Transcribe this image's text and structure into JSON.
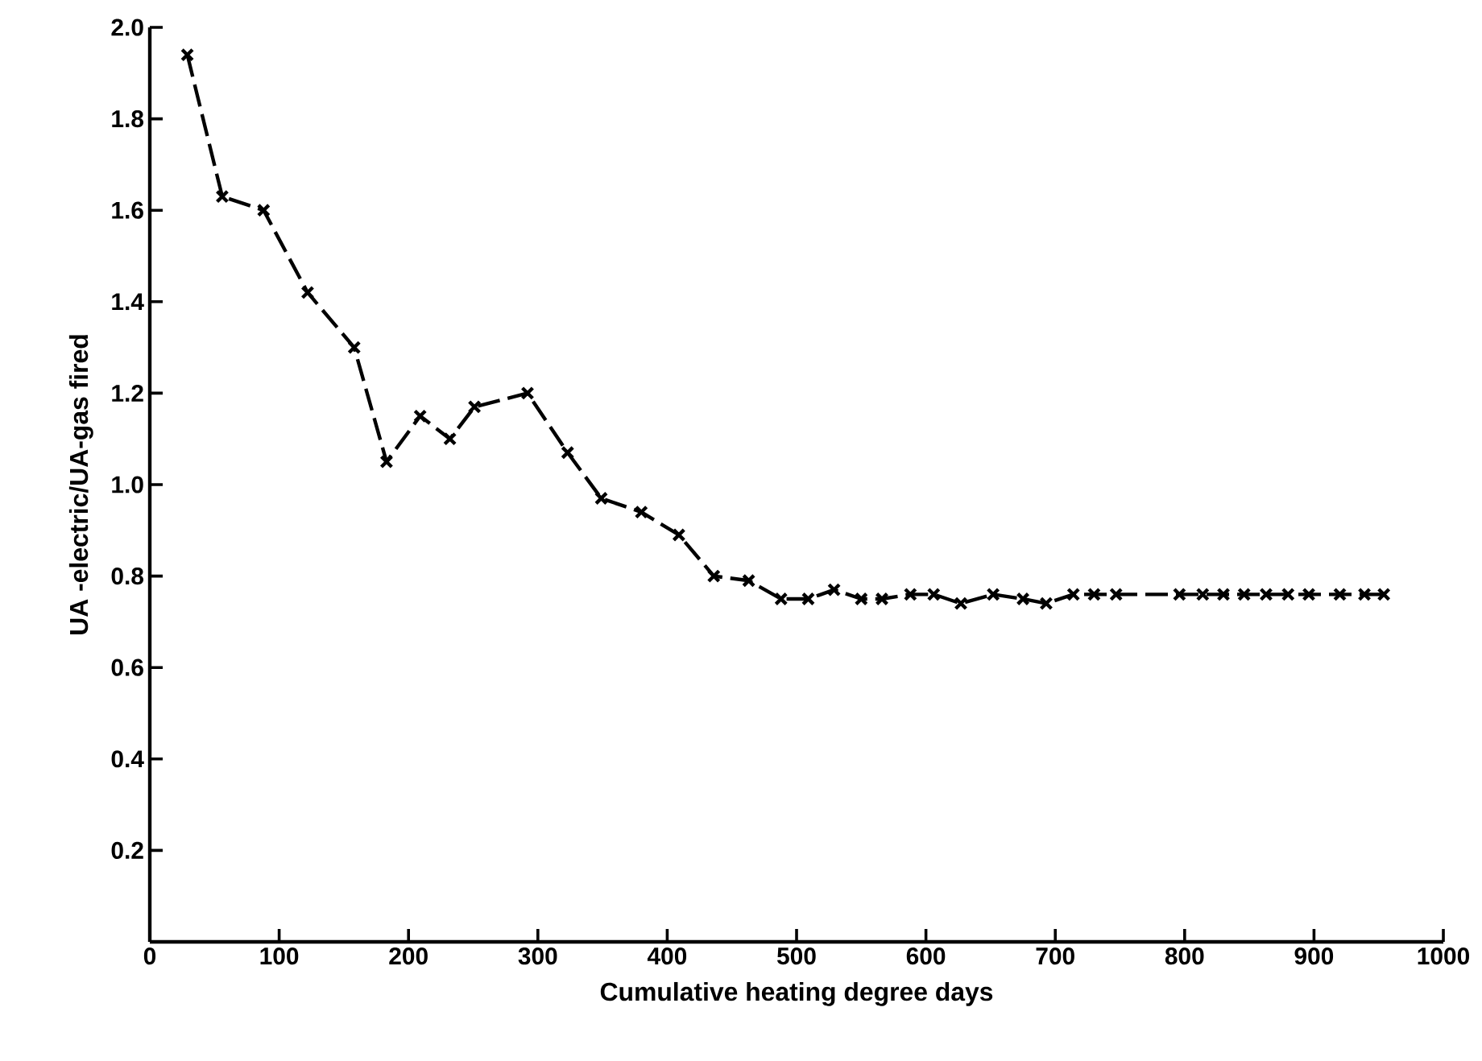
{
  "chart_data": {
    "type": "line",
    "xlabel": "Cumulative heating degree days",
    "ylabel": "UA -electric/UA-gas fired",
    "x": [
      29,
      56,
      88,
      122,
      158,
      183,
      209,
      232,
      251,
      292,
      323,
      349,
      380,
      409,
      436,
      463,
      488,
      509,
      529,
      550,
      566,
      588,
      606,
      627,
      652,
      675,
      693,
      714,
      730,
      747,
      796,
      814,
      830,
      846,
      863,
      880,
      896,
      920,
      939,
      954
    ],
    "series": [
      {
        "color": "#000000",
        "values": [
          1.94,
          1.63,
          1.6,
          1.42,
          1.3,
          1.05,
          1.15,
          1.1,
          1.17,
          1.2,
          1.07,
          0.97,
          0.94,
          0.89,
          0.8,
          0.79,
          0.75,
          0.75,
          0.77,
          0.75,
          0.75,
          0.76,
          0.76,
          0.74,
          0.76,
          0.75,
          0.74,
          0.76,
          0.76,
          0.76,
          0.76,
          0.76,
          0.76,
          0.76,
          0.76,
          0.76,
          0.76,
          0.76,
          0.76,
          0.76
        ]
      }
    ],
    "xlim": [
      0,
      1000
    ],
    "ylim": [
      0,
      2.0
    ],
    "xticks": [
      0,
      100,
      200,
      300,
      400,
      500,
      600,
      700,
      800,
      900,
      1000
    ],
    "yticks": [
      0.2,
      0.4,
      0.6,
      0.8,
      {
        "value": 1.0,
        "label": "1.0"
      },
      1.2,
      1.4,
      1.6,
      1.8,
      {
        "value": 2.0,
        "label": "2.0"
      }
    ],
    "marker": "cross",
    "line_style": "dashed",
    "grid": false
  }
}
